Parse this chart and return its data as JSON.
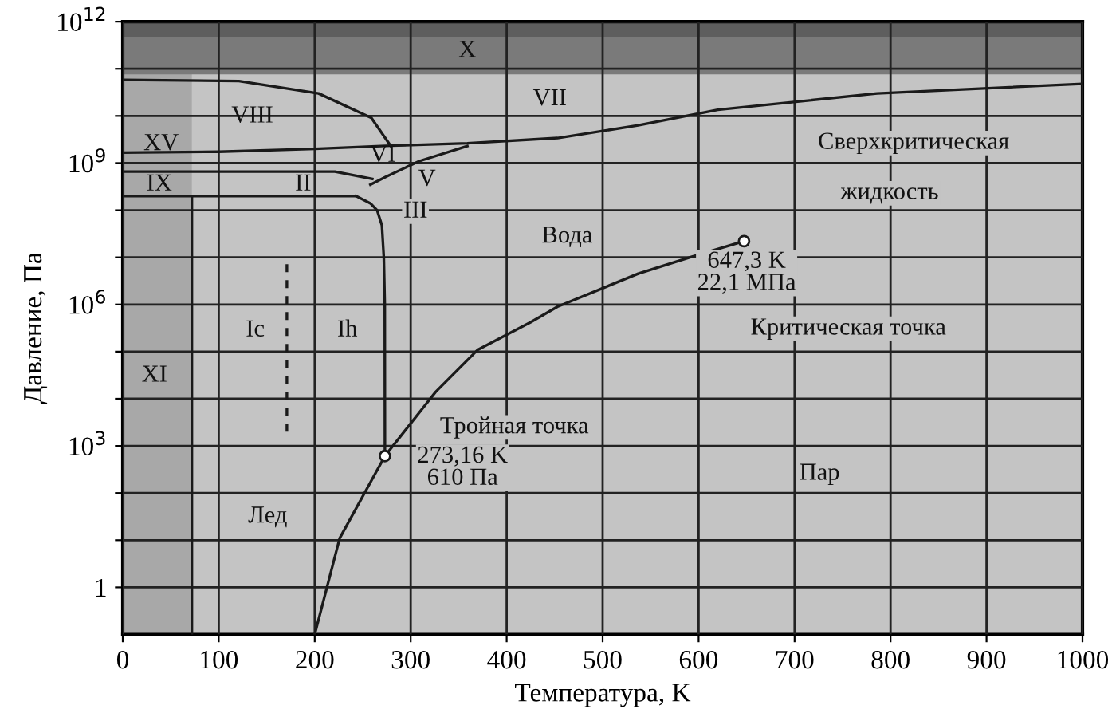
{
  "chart_data": {
    "type": "line",
    "xlabel": "Температура, K",
    "ylabel": "Давление, Па",
    "log": "y",
    "grid": true,
    "xlim": [
      0,
      1000
    ],
    "xticks": [
      0,
      100,
      200,
      300,
      400,
      500,
      600,
      700,
      800,
      900,
      1000
    ],
    "ylim": [
      0.1,
      1000000000000.0
    ],
    "yticks": [
      {
        "value": 1,
        "label": "1"
      },
      {
        "value": 10,
        "label": null
      },
      {
        "value": 100,
        "label": null
      },
      {
        "value": 1000,
        "label": "10$^{3}$"
      },
      {
        "value": 10000,
        "label": null
      },
      {
        "value": 100000,
        "label": null
      },
      {
        "value": 1000000,
        "label": "10$^{6}$"
      },
      {
        "value": 10000000,
        "label": null
      },
      {
        "value": 100000000,
        "label": null
      },
      {
        "value": 1000000000,
        "label": "10$^{9}$"
      },
      {
        "value": 10000000000,
        "label": null
      },
      {
        "value": 100000000000,
        "label": null
      },
      {
        "value": 1000000000000,
        "label": "10$^{12}$"
      }
    ],
    "bands": [
      {
        "axis": "x",
        "from": 0,
        "to": 72,
        "color": "#a8a8a8"
      },
      {
        "axis": "y",
        "from": 76000000000,
        "to": 1000000000000,
        "color": "#7a7a7a"
      },
      {
        "axis": "y",
        "from": 480000000000,
        "to": 1000000000000,
        "color": "#5e5e5e"
      }
    ],
    "series": [
      {
        "color": "#1a1a1a",
        "x": [
          200,
          226,
          273.16,
          326,
          370,
          425,
          453,
          537,
          591,
          647.3
        ],
        "values": [
          0.1,
          11,
          610,
          14000,
          110000,
          420000,
          900000,
          4500000,
          10000000,
          22100000
        ]
      },
      {
        "color": "#1a1a1a",
        "x": [
          273.16,
          273,
          272,
          270,
          265,
          258,
          243
        ],
        "values": [
          610,
          1000000,
          10000000,
          48000000,
          100000000,
          140000000,
          200000000
        ]
      },
      {
        "color": "#1a1a1a",
        "x": [
          0,
          243
        ],
        "values": [
          200000000,
          200000000
        ]
      },
      {
        "color": "#1a1a1a",
        "x": [
          72,
          72
        ],
        "values": [
          0.1,
          200000000
        ]
      },
      {
        "color": "#1a1a1a",
        "x": [
          0,
          221,
          260
        ],
        "values": [
          660000000,
          660000000,
          460000000
        ]
      },
      {
        "color": "#1a1a1a",
        "x": [
          258,
          274,
          309,
          359
        ],
        "values": [
          350000000,
          510000000,
          1100000000,
          2300000000
        ]
      },
      {
        "color": "#1a1a1a",
        "x": [
          0,
          100,
          200,
          279,
          359,
          453,
          537,
          620,
          786,
          1000
        ],
        "values": [
          1660000000,
          1740000000,
          2000000000,
          2340000000,
          2630000000,
          3400000000,
          6300000000,
          13500000000,
          30000000000,
          48000000000
        ]
      },
      {
        "color": "#1a1a1a",
        "x": [
          0,
          121,
          204,
          259,
          279
        ],
        "values": [
          58000000000,
          55000000000,
          30000000000,
          9100000000,
          2340000000
        ]
      },
      {
        "color": "#1a1a1a",
        "line_style": "dashed",
        "x": [
          171,
          171
        ],
        "values": [
          2000,
          8000000
        ]
      },
      {
        "type": "scatter",
        "marker": "circle",
        "color": "#1a1a1a",
        "x": [
          273.16,
          647.3
        ],
        "values": [
          610,
          22100000
        ]
      }
    ],
    "annotations": [
      "Тройная точка",
      "273,16 K\n610 Па",
      "647,3 K\n22,1 МПа",
      "Критическая точка",
      "Сверхкритическая",
      "жидкость",
      "Вода",
      "Пар",
      "Лед",
      "Ic",
      "Ih",
      "XI",
      "X",
      "VIII",
      "VII",
      "XV",
      "IX",
      "II",
      "VI",
      "V",
      "III"
    ]
  }
}
